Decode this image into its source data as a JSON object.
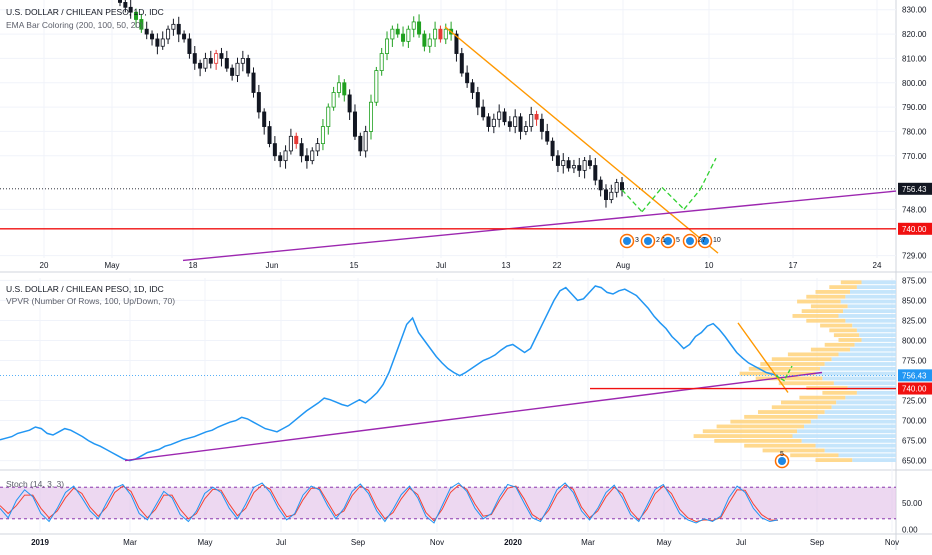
{
  "chart_data": [
    {
      "type": "candlestick",
      "title": "U.S. DOLLAR / CHILEAN PESO, 1D, IDC",
      "indicator": "EMA Bar Coloring (200, 100, 50, 20)",
      "x_ticks": [
        "20",
        "May",
        "18",
        "Jun",
        "15",
        "Jul",
        "13",
        "22",
        "Aug",
        "10",
        "17",
        "24"
      ],
      "y_ticks": [
        "830.00",
        "820.00",
        "810.00",
        "800.00",
        "790.00",
        "780.00",
        "770.00",
        "748.00",
        "729.00"
      ],
      "ylim": [
        728,
        834
      ],
      "last_price_label": "756.43",
      "last_price": 756.43,
      "support_label": "740.00",
      "support": 740,
      "event_badges": [
        "3",
        "2",
        "1",
        "5",
        "27",
        "10"
      ],
      "closes": [
        833,
        831,
        829,
        826,
        822,
        820,
        818,
        815,
        818,
        822,
        824,
        820,
        818,
        812,
        808,
        806,
        810,
        808,
        812,
        810,
        806,
        803,
        808,
        810,
        804,
        796,
        788,
        782,
        775,
        770,
        768,
        772,
        778,
        775,
        770,
        768,
        772,
        775,
        782,
        790,
        796,
        800,
        795,
        788,
        778,
        772,
        780,
        792,
        805,
        812,
        818,
        822,
        820,
        817,
        822,
        825,
        820,
        815,
        818,
        822,
        818,
        822,
        820,
        812,
        804,
        800,
        796,
        790,
        786,
        782,
        785,
        788,
        784,
        782,
        786,
        780,
        782,
        787,
        785,
        780,
        776,
        770,
        766,
        768,
        765,
        766,
        764,
        768,
        766,
        760,
        756,
        752,
        755,
        759,
        756
      ]
    },
    {
      "type": "line",
      "title": "U.S. DOLLAR / CHILEAN PESO, 1D, IDC",
      "indicator": "VPVR (Number Of Rows, 100, Up/Down, 70)",
      "x_ticks": [
        "2019",
        "Mar",
        "May",
        "Jul",
        "Sep",
        "Nov",
        "2020",
        "Mar",
        "May",
        "Jul",
        "Sep",
        "Nov"
      ],
      "y_ticks": [
        "875.00",
        "850.00",
        "825.00",
        "800.00",
        "775.00",
        "725.00",
        "700.00",
        "675.00",
        "650.00"
      ],
      "ylim": [
        642,
        878
      ],
      "last_price_label": "756.43",
      "last_price": 756.43,
      "support_label": "740.00",
      "support": 740,
      "event_badge": "5",
      "values": [
        676,
        678,
        680,
        684,
        686,
        688,
        692,
        690,
        684,
        682,
        686,
        690,
        688,
        684,
        680,
        675,
        671,
        668,
        664,
        660,
        656,
        652,
        650,
        652,
        656,
        660,
        662,
        664,
        668,
        670,
        673,
        676,
        678,
        680,
        683,
        686,
        688,
        692,
        695,
        698,
        700,
        704,
        702,
        698,
        694,
        690,
        688,
        686,
        690,
        694,
        700,
        706,
        712,
        717,
        722,
        728,
        726,
        723,
        720,
        718,
        722,
        726,
        722,
        728,
        735,
        745,
        760,
        780,
        800,
        820,
        828,
        810,
        800,
        790,
        780,
        772,
        765,
        760,
        756,
        760,
        765,
        770,
        775,
        778,
        782,
        788,
        793,
        795,
        790,
        785,
        790,
        805,
        820,
        835,
        850,
        862,
        866,
        858,
        850,
        852,
        860,
        868,
        866,
        860,
        858,
        862,
        864,
        860,
        856,
        848,
        840,
        830,
        822,
        815,
        805,
        798,
        790,
        795,
        805,
        810,
        818,
        821,
        814,
        805,
        795,
        785,
        778,
        772,
        768,
        764,
        760,
        758,
        756
      ],
      "volume_profile_rows": [
        {
          "price": 872,
          "up": 18,
          "down": 30
        },
        {
          "price": 866,
          "up": 24,
          "down": 34
        },
        {
          "price": 860,
          "up": 30,
          "down": 40
        },
        {
          "price": 854,
          "up": 34,
          "down": 44
        },
        {
          "price": 848,
          "up": 38,
          "down": 48
        },
        {
          "price": 842,
          "up": 32,
          "down": 42
        },
        {
          "price": 836,
          "up": 36,
          "down": 46
        },
        {
          "price": 830,
          "up": 40,
          "down": 50
        },
        {
          "price": 824,
          "up": 34,
          "down": 44
        },
        {
          "price": 818,
          "up": 28,
          "down": 38
        },
        {
          "price": 812,
          "up": 24,
          "down": 34
        },
        {
          "price": 806,
          "up": 22,
          "down": 32
        },
        {
          "price": 800,
          "up": 20,
          "down": 30
        },
        {
          "price": 794,
          "up": 26,
          "down": 36
        },
        {
          "price": 788,
          "up": 34,
          "down": 40
        },
        {
          "price": 782,
          "up": 44,
          "down": 50
        },
        {
          "price": 776,
          "up": 52,
          "down": 56
        },
        {
          "price": 770,
          "up": 56,
          "down": 62
        },
        {
          "price": 764,
          "up": 62,
          "down": 66
        },
        {
          "price": 758,
          "up": 66,
          "down": 70
        },
        {
          "price": 752,
          "up": 58,
          "down": 64
        },
        {
          "price": 746,
          "up": 48,
          "down": 54
        },
        {
          "price": 740,
          "up": 36,
          "down": 42
        },
        {
          "price": 734,
          "up": 30,
          "down": 34
        },
        {
          "price": 728,
          "up": 40,
          "down": 44
        },
        {
          "price": 722,
          "up": 48,
          "down": 52
        },
        {
          "price": 716,
          "up": 52,
          "down": 56
        },
        {
          "price": 710,
          "up": 58,
          "down": 62
        },
        {
          "price": 704,
          "up": 64,
          "down": 68
        },
        {
          "price": 698,
          "up": 70,
          "down": 74
        },
        {
          "price": 692,
          "up": 76,
          "down": 80
        },
        {
          "price": 686,
          "up": 82,
          "down": 86
        },
        {
          "price": 680,
          "up": 86,
          "down": 90
        },
        {
          "price": 674,
          "up": 76,
          "down": 82
        },
        {
          "price": 668,
          "up": 62,
          "down": 70
        },
        {
          "price": 662,
          "up": 54,
          "down": 62
        },
        {
          "price": 656,
          "up": 42,
          "down": 50
        },
        {
          "price": 650,
          "up": 32,
          "down": 38
        }
      ]
    },
    {
      "type": "line",
      "title": "Stoch (14, 3, 3)",
      "y_ticks": [
        "50.00",
        "0.00"
      ],
      "ylim": [
        -5,
        105
      ],
      "bands": [
        20,
        80
      ],
      "k": [
        40,
        22,
        55,
        75,
        62,
        30,
        15,
        40,
        70,
        82,
        60,
        35,
        20,
        50,
        78,
        85,
        65,
        30,
        18,
        45,
        72,
        60,
        28,
        15,
        35,
        68,
        80,
        70,
        40,
        20,
        48,
        80,
        88,
        70,
        40,
        18,
        30,
        65,
        82,
        75,
        45,
        20,
        40,
        72,
        86,
        68,
        35,
        15,
        38,
        66,
        82,
        60,
        25,
        12,
        45,
        78,
        88,
        72,
        40,
        20,
        30,
        62,
        85,
        80,
        50,
        22,
        15,
        42,
        75,
        88,
        70,
        35,
        18,
        40,
        70,
        84,
        60,
        28,
        15,
        45,
        76,
        85,
        60,
        30,
        18,
        12,
        20,
        15,
        25,
        60,
        82,
        70,
        40,
        22,
        15,
        18
      ],
      "d": [
        45,
        30,
        45,
        65,
        65,
        40,
        22,
        35,
        60,
        78,
        68,
        42,
        25,
        42,
        70,
        82,
        72,
        40,
        22,
        38,
        65,
        65,
        38,
        20,
        30,
        58,
        76,
        74,
        48,
        26,
        40,
        70,
        84,
        76,
        48,
        24,
        28,
        56,
        78,
        78,
        52,
        26,
        35,
        64,
        82,
        74,
        42,
        20,
        32,
        58,
        78,
        66,
        32,
        16,
        38,
        70,
        84,
        76,
        48,
        25,
        28,
        55,
        78,
        82,
        58,
        28,
        18,
        36,
        66,
        84,
        76,
        42,
        22,
        35,
        62,
        80,
        68,
        35,
        18,
        38,
        68,
        82,
        68,
        38,
        22,
        15,
        18,
        17,
        22,
        50,
        75,
        74,
        48,
        28,
        18,
        17
      ]
    }
  ],
  "colors": {
    "up_bar": "#131722",
    "green_bar": "#20a020",
    "red_bar": "#e53935",
    "trend_orange": "#ff9800",
    "trend_purple": "#9c27b0",
    "support_red": "#f01010",
    "price_line": "#2196f3",
    "price_label_bg": "#131722",
    "vp_up": "#ffd27a",
    "vp_down": "#bfe2fb",
    "stoch_band": "#e1bee7",
    "stoch_k": "#2196f3",
    "stoch_d": "#f44336",
    "projection_green": "#31d131"
  }
}
